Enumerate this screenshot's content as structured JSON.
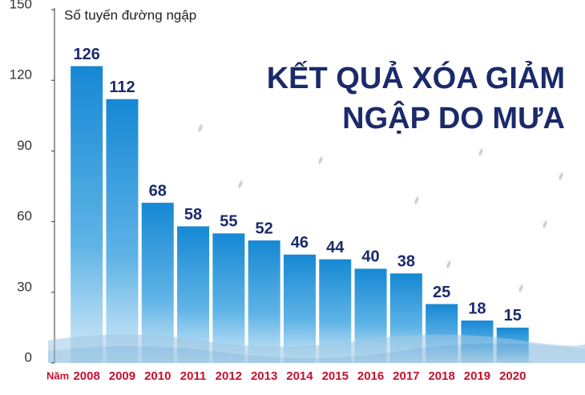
{
  "chart_data": {
    "type": "bar",
    "title": [
      "KẾT QUẢ XÓA GIẢM",
      "NGẬP DO MƯA"
    ],
    "y_axis_label": "Số tuyến đường ngập",
    "x_axis_label": "Năm",
    "categories": [
      "2008",
      "2009",
      "2010",
      "2011",
      "2012",
      "2013",
      "2014",
      "2015",
      "2016",
      "2017",
      "2018",
      "2019",
      "2020"
    ],
    "values": [
      126,
      112,
      68,
      58,
      55,
      52,
      46,
      44,
      40,
      38,
      25,
      18,
      15
    ],
    "color": "#1a8fd6",
    "ylim": [
      0,
      150
    ],
    "yticks": [
      0,
      30,
      60,
      90,
      120,
      150
    ],
    "grid": false
  }
}
